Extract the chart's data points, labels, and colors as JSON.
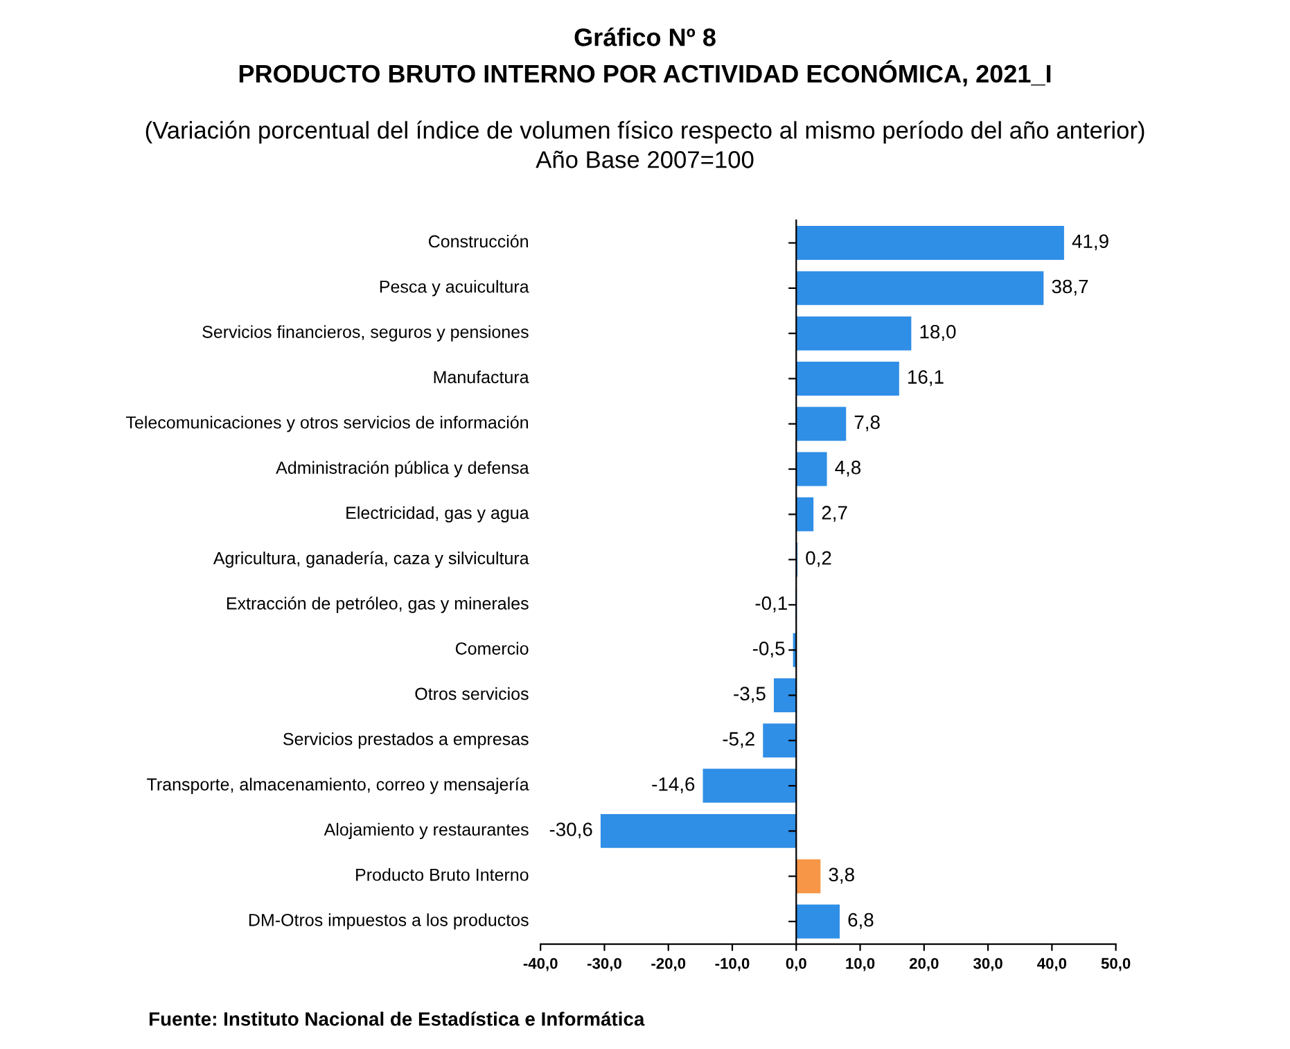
{
  "chart_data": {
    "type": "bar",
    "orientation": "horizontal",
    "title": "Gráfico Nº 8\nPRODUCTO BRUTO INTERNO POR ACTIVIDAD ECONÓMICA, 2021_I",
    "subtitle": "(Variación porcentual del índice de volumen físico respecto al mismo período del año anterior)\nAño Base 2007=100",
    "categories": [
      "Construcción",
      "Pesca y acuicultura",
      "Servicios financieros, seguros y pensiones",
      "Manufactura",
      "Telecomunicaciones y otros servicios de información",
      "Administración pública y defensa",
      "Electricidad, gas y agua",
      "Agricultura, ganadería, caza y silvicultura",
      "Extracción de petróleo, gas y minerales",
      "Comercio",
      "Otros servicios",
      "Servicios prestados a empresas",
      "Transporte, almacenamiento, correo y mensajería",
      "Alojamiento y restaurantes",
      "Producto Bruto Interno",
      "DM-Otros impuestos a los productos"
    ],
    "values": [
      41.9,
      38.7,
      18.0,
      16.1,
      7.8,
      4.8,
      2.7,
      0.2,
      -0.1,
      -0.5,
      -3.5,
      -5.2,
      -14.6,
      -30.6,
      3.8,
      6.8
    ],
    "value_labels": [
      "41,9",
      "38,7",
      "18,0",
      "16,1",
      "7,8",
      "4,8",
      "2,7",
      "0,2",
      "-0,1",
      "-0,5",
      "-3,5",
      "-5,2",
      "-14,6",
      "-30,6",
      "3,8",
      "6,8"
    ],
    "colors": [
      "#2f8ee6",
      "#2f8ee6",
      "#2f8ee6",
      "#2f8ee6",
      "#2f8ee6",
      "#2f8ee6",
      "#2f8ee6",
      "#2f8ee6",
      "#2f8ee6",
      "#2f8ee6",
      "#2f8ee6",
      "#2f8ee6",
      "#2f8ee6",
      "#2f8ee6",
      "#f79646",
      "#2f8ee6"
    ],
    "xlim": [
      -40,
      50
    ],
    "xticks": [
      {
        "value": -40,
        "label": "-40,0"
      },
      {
        "value": -30,
        "label": "-30,0"
      },
      {
        "value": -20,
        "label": "-20,0"
      },
      {
        "value": -10,
        "label": "-10,0"
      },
      {
        "value": 0,
        "label": "0,0"
      },
      {
        "value": 10,
        "label": "10,0"
      },
      {
        "value": 20,
        "label": "20,0"
      },
      {
        "value": 30,
        "label": "30,0"
      },
      {
        "value": 40,
        "label": "40,0"
      },
      {
        "value": 50,
        "label": "50,0"
      }
    ],
    "legend": false,
    "annotations": [
      "Fuente: Instituto Nacional de Estadística e Informática"
    ]
  }
}
